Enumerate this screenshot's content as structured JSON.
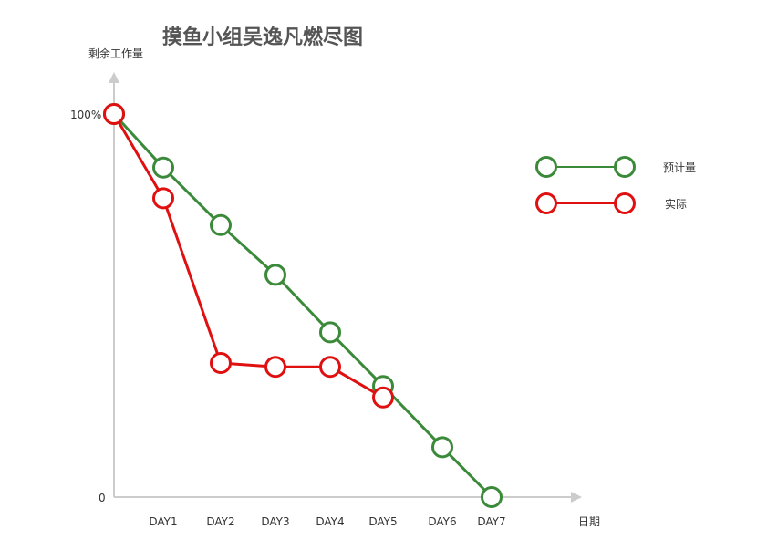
{
  "chart_data": {
    "type": "line",
    "title": "摸鱼小组吴逸凡燃尽图",
    "ylabel": "剩余工作量",
    "xlabel": "日期",
    "y_tick_labels": [
      "100%",
      "0"
    ],
    "ylim": [
      0,
      100
    ],
    "x_positions": [
      0,
      1,
      2,
      3,
      4,
      5,
      6,
      7
    ],
    "categories": [
      "DAY1",
      "DAY2",
      "DAY3",
      "DAY4",
      "DAY5",
      "DAY6",
      "DAY7"
    ],
    "series": [
      {
        "name": "预计量",
        "color": "#3a8a3a",
        "x": [
          0,
          1,
          2,
          3,
          4,
          5,
          6,
          7
        ],
        "values": [
          100,
          86,
          71,
          58,
          43,
          29,
          13,
          0
        ]
      },
      {
        "name": "实际",
        "color": "#e01010",
        "x": [
          0,
          1,
          2,
          3,
          4,
          5
        ],
        "values": [
          100,
          78,
          35,
          34,
          34,
          26
        ]
      }
    ],
    "legend_position": "right",
    "grid": false
  }
}
